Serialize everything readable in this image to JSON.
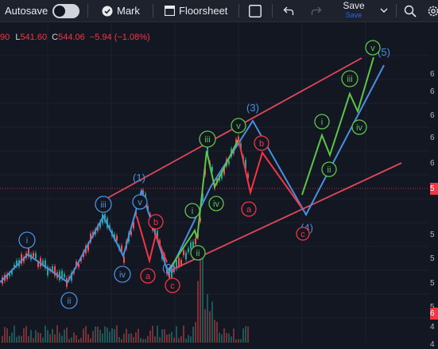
{
  "toolbar": {
    "autosave_label": "Autosave",
    "autosave_on": false,
    "mark_label": "Mark",
    "floorsheet_label": "Floorsheet",
    "save_label": "Save",
    "save_sub_label": "Save"
  },
  "ohlc": {
    "o_partial": "90",
    "l_label": "L",
    "l_value": "541.60",
    "c_label": "C",
    "c_value": "544.06",
    "change": "−5.94 (−1.08%)"
  },
  "price_axis": {
    "ticks": [
      "6",
      "6",
      "6",
      "6",
      "6",
      "5",
      "5",
      "5",
      "5",
      "5",
      "4",
      "4"
    ],
    "badge_top": "5",
    "badge_bottom": "6"
  },
  "waves": {
    "blue_labels": [
      "i",
      "ii",
      "iii",
      "iv",
      "v",
      "(1)",
      "(2)",
      "(3)",
      "(4)",
      "(5)"
    ],
    "green_labels": [
      "i",
      "ii",
      "iii",
      "iv",
      "v",
      "i",
      "ii",
      "iii",
      "iv",
      "v"
    ],
    "red_labels": [
      "a",
      "b",
      "c",
      "a",
      "b",
      "c"
    ]
  },
  "colors": {
    "background": "#131722",
    "blue_wave": "#4a90e2",
    "green_wave": "#5fc44a",
    "red_wave": "#f23645",
    "channel": "#e0485a"
  }
}
